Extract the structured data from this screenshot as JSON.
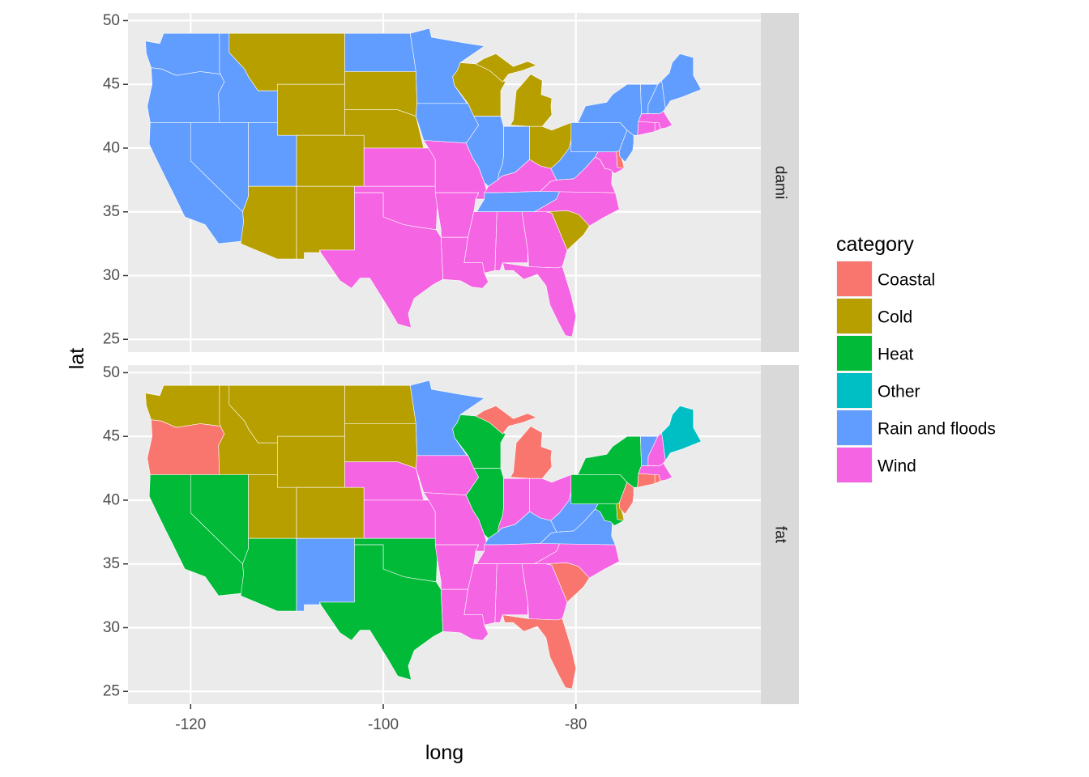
{
  "chart_data": {
    "type": "choropleth-map",
    "x_axis": {
      "title": "long",
      "ticks": [
        -120,
        -100,
        -80
      ],
      "range": [
        -126.5,
        -60.8
      ]
    },
    "y_axis": {
      "title": "lat",
      "ticks": [
        25,
        30,
        35,
        40,
        45,
        50
      ],
      "range": [
        24.0,
        50.6
      ]
    },
    "grid": true,
    "legend": {
      "title": "category",
      "placement": "right",
      "entries": [
        {
          "label": "Coastal",
          "color": "#F8766D"
        },
        {
          "label": "Cold",
          "color": "#B79F00"
        },
        {
          "label": "Heat",
          "color": "#00BA38"
        },
        {
          "label": "Other",
          "color": "#00BFC4"
        },
        {
          "label": "Rain and floods",
          "color": "#619CFF"
        },
        {
          "label": "Wind",
          "color": "#F564E3"
        }
      ]
    },
    "facets": [
      {
        "strip": "dami",
        "states": {
          "WA": "Rain and floods",
          "OR": "Rain and floods",
          "CA": "Rain and floods",
          "ID": "Rain and floods",
          "NV": "Rain and floods",
          "UT": "Rain and floods",
          "AZ": "Cold",
          "MT": "Cold",
          "WY": "Cold",
          "CO": "Cold",
          "NM": "Cold",
          "ND": "Rain and floods",
          "SD": "Cold",
          "NE": "Cold",
          "KS": "Wind",
          "OK": "Wind",
          "TX": "Wind",
          "MN": "Rain and floods",
          "IA": "Rain and floods",
          "MO": "Wind",
          "AR": "Wind",
          "LA": "Wind",
          "WI": "Cold",
          "IL": "Rain and floods",
          "MI": "Cold",
          "IN": "Rain and floods",
          "OH": "Cold",
          "KY": "Wind",
          "TN": "Rain and floods",
          "MS": "Wind",
          "AL": "Wind",
          "GA": "Wind",
          "FL": "Wind",
          "SC": "Cold",
          "NC": "Wind",
          "VA": "Wind",
          "WV": "Rain and floods",
          "MD": "Wind",
          "DE": "Coastal",
          "NJ": "Rain and floods",
          "PA": "Rain and floods",
          "NY": "Rain and floods",
          "CT": "Wind",
          "RI": "Wind",
          "MA": "Wind",
          "VT": "Rain and floods",
          "NH": "Rain and floods",
          "ME": "Rain and floods"
        }
      },
      {
        "strip": "fat",
        "states": {
          "WA": "Cold",
          "OR": "Coastal",
          "CA": "Heat",
          "ID": "Cold",
          "NV": "Heat",
          "UT": "Cold",
          "AZ": "Heat",
          "MT": "Cold",
          "WY": "Cold",
          "CO": "Cold",
          "NM": "Rain and floods",
          "ND": "Cold",
          "SD": "Cold",
          "NE": "Wind",
          "KS": "Wind",
          "OK": "Heat",
          "TX": "Heat",
          "MN": "Rain and floods",
          "IA": "Wind",
          "MO": "Wind",
          "AR": "Wind",
          "LA": "Wind",
          "WI": "Heat",
          "IL": "Heat",
          "MI": "Coastal",
          "IN": "Wind",
          "OH": "Wind",
          "KY": "Rain and floods",
          "TN": "Wind",
          "MS": "Wind",
          "AL": "Wind",
          "GA": "Wind",
          "FL": "Coastal",
          "SC": "Coastal",
          "NC": "Wind",
          "VA": "Rain and floods",
          "WV": "Rain and floods",
          "MD": "Heat",
          "DE": "Cold",
          "NJ": "Coastal",
          "PA": "Heat",
          "NY": "Heat",
          "CT": "Coastal",
          "RI": "Coastal",
          "MA": "Wind",
          "VT": "Rain and floods",
          "NH": "Wind",
          "ME": "Other"
        }
      }
    ]
  }
}
